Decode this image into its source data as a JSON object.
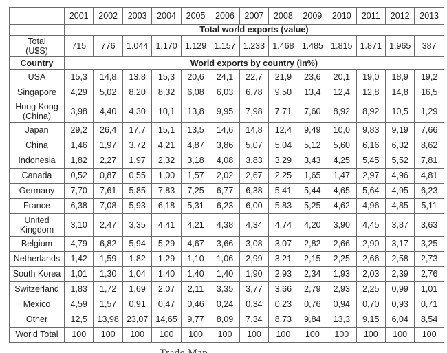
{
  "table": {
    "years": [
      "2001",
      "2002",
      "2003",
      "2004",
      "2005",
      "2006",
      "2007",
      "2008",
      "2009",
      "2010",
      "2011",
      "2012",
      "2013"
    ],
    "section1_title": "Total world exports (value)",
    "total_row": {
      "label": "Total\n(U$S)",
      "values": [
        "715",
        "776",
        "1.044",
        "1.170",
        "1.129",
        "1.157",
        "1.233",
        "1.468",
        "1.485",
        "1.815",
        "1.871",
        "1.965",
        "387"
      ]
    },
    "country_header": "Country",
    "section2_title": "World exports by country (in%)",
    "country_rows": [
      {
        "country": "USA",
        "values": [
          "15,3",
          "14,8",
          "13,8",
          "15,3",
          "20,6",
          "24,1",
          "22,7",
          "21,9",
          "23,6",
          "20,1",
          "19,0",
          "18,9",
          "19,2"
        ]
      },
      {
        "country": "Singapore",
        "values": [
          "4,29",
          "5,02",
          "8,20",
          "8,32",
          "6,08",
          "6,03",
          "6,78",
          "9,50",
          "13,4",
          "12,4",
          "12,8",
          "14,8",
          "16,5"
        ]
      },
      {
        "country": "Hong Kong\n(China)",
        "values": [
          "3,98",
          "4,40",
          "4,30",
          "10,1",
          "13,8",
          "9,95",
          "7,98",
          "7,71",
          "7,60",
          "8,92",
          "8,92",
          "10,5",
          "1,29"
        ]
      },
      {
        "country": "Japan",
        "values": [
          "29,2",
          "26,4",
          "17,7",
          "15,1",
          "13,5",
          "14,6",
          "14,8",
          "12,4",
          "9,49",
          "10,0",
          "9,83",
          "9,19",
          "7,66"
        ]
      },
      {
        "country": "China",
        "values": [
          "1,46",
          "1,97",
          "3,72",
          "4,21",
          "4,87",
          "3,86",
          "5,07",
          "5,04",
          "5,12",
          "5,60",
          "6,16",
          "6,32",
          "8,62"
        ]
      },
      {
        "country": "Indonesia",
        "values": [
          "1,82",
          "2,27",
          "1,97",
          "2,32",
          "3,18",
          "4,08",
          "3,83",
          "3,29",
          "3,43",
          "4,25",
          "5,45",
          "5,52",
          "7,81"
        ]
      },
      {
        "country": "Canada",
        "values": [
          "0,52",
          "0,87",
          "0,55",
          "1,00",
          "1,57",
          "2,02",
          "2,67",
          "2,25",
          "1,65",
          "1,47",
          "2,97",
          "4,96",
          "4,81"
        ]
      },
      {
        "country": "Germany",
        "values": [
          "7,70",
          "7,61",
          "5,85",
          "7,83",
          "7,25",
          "6,77",
          "6,38",
          "5,41",
          "5,44",
          "4,65",
          "5,64",
          "4,95",
          "6,23"
        ]
      },
      {
        "country": "France",
        "values": [
          "6,38",
          "7,08",
          "5,93",
          "6,18",
          "5,31",
          "6,23",
          "6,00",
          "5,83",
          "5,25",
          "4,62",
          "4,96",
          "4,85",
          "5,11"
        ]
      },
      {
        "country": "United\nKingdom",
        "values": [
          "3,10",
          "2,47",
          "3,35",
          "4,41",
          "4,21",
          "4,38",
          "4,34",
          "4,74",
          "4,20",
          "3,90",
          "4,45",
          "3,87",
          "3,63"
        ]
      },
      {
        "country": "Belgium",
        "values": [
          "4,79",
          "6,82",
          "5,94",
          "5,29",
          "4,67",
          "3,66",
          "3,08",
          "3,07",
          "2,82",
          "2,66",
          "2,90",
          "3,17",
          "3,25"
        ]
      },
      {
        "country": "Netherlands",
        "values": [
          "1,42",
          "1,59",
          "1,82",
          "1,29",
          "1,10",
          "1,06",
          "2,99",
          "3,21",
          "2,15",
          "2,25",
          "2,66",
          "2,58",
          "2,73"
        ]
      },
      {
        "country": "South Korea",
        "values": [
          "1,01",
          "1,30",
          "1,04",
          "1,40",
          "1,40",
          "1,40",
          "1,90",
          "2,93",
          "2,34",
          "1,93",
          "2,03",
          "2,39",
          "2,76"
        ]
      },
      {
        "country": "Switzerland",
        "values": [
          "1,83",
          "1,72",
          "1,69",
          "2,07",
          "2,11",
          "3,35",
          "3,77",
          "3,66",
          "2,79",
          "2,93",
          "2,25",
          "0,99",
          "1,01"
        ]
      },
      {
        "country": "Mexico",
        "values": [
          "4,59",
          "1,57",
          "0,91",
          "0,47",
          "0,46",
          "0,24",
          "0,34",
          "0,23",
          "0,76",
          "0,94",
          "0,70",
          "0,93",
          "0,71"
        ]
      },
      {
        "country": "Other",
        "values": [
          "12,5",
          "13,98",
          "23,07",
          "14,65",
          "9,77",
          "8,09",
          "7,34",
          "8,73",
          "9,84",
          "13,3",
          "9,15",
          "6,04",
          "8,54"
        ]
      },
      {
        "country": "World Total",
        "values": [
          "100",
          "100",
          "100",
          "100",
          "100",
          "100",
          "100",
          "100",
          "100",
          "100",
          "100",
          "100",
          "100"
        ]
      }
    ]
  },
  "caption": "Trade Map"
}
